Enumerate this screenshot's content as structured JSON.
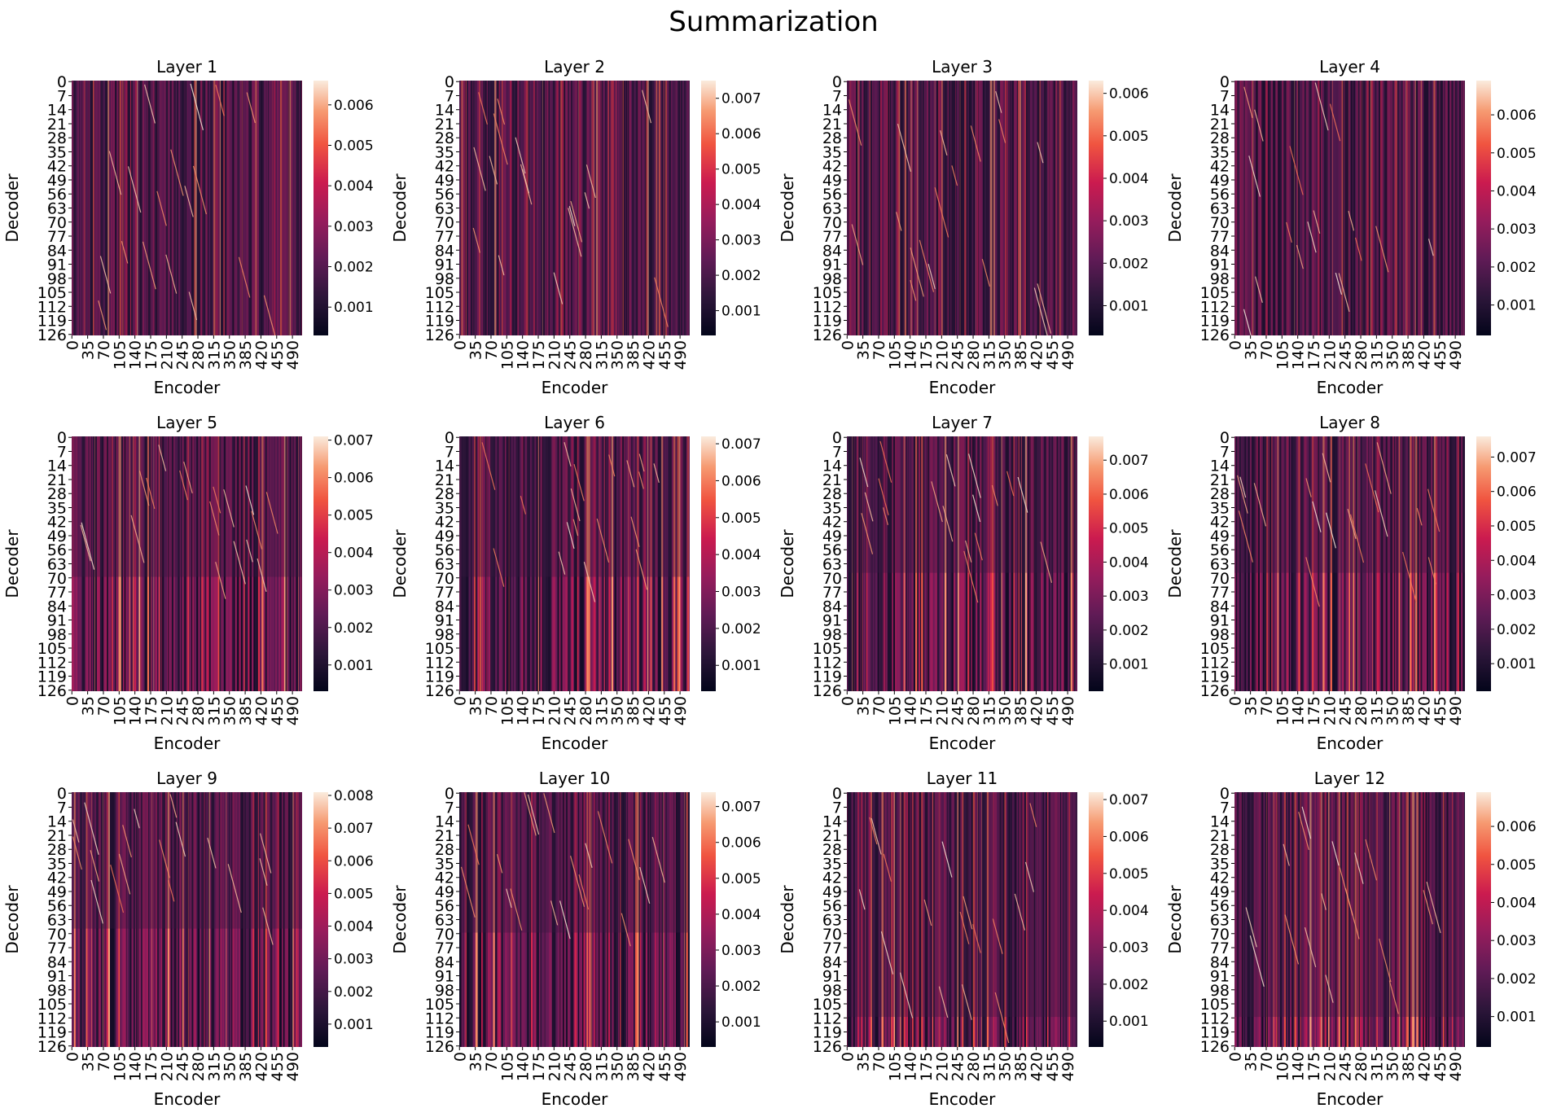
{
  "chart_data": {
    "type": "heatmap",
    "title": "Summarization",
    "xlabel": "Encoder",
    "ylabel": "Decoder",
    "x_range": [
      0,
      511
    ],
    "y_range": [
      0,
      127
    ],
    "colormap": "rocket",
    "x_tick_labels": [
      "0",
      "35",
      "70",
      "105",
      "140",
      "175",
      "210",
      "245",
      "280",
      "315",
      "350",
      "385",
      "420",
      "455",
      "490"
    ],
    "y_tick_labels": [
      "0",
      "7",
      "14",
      "21",
      "28",
      "35",
      "42",
      "49",
      "56",
      "63",
      "70",
      "77",
      "84",
      "91",
      "98",
      "105",
      "112",
      "119",
      "126"
    ],
    "panels": [
      {
        "title": "Layer 1",
        "cmin": 0.0003,
        "cmax": 0.0066,
        "colorbar_ticks": [
          "0.001",
          "0.002",
          "0.003",
          "0.004",
          "0.005",
          "0.006"
        ]
      },
      {
        "title": "Layer 2",
        "cmin": 0.0003,
        "cmax": 0.0075,
        "colorbar_ticks": [
          "0.001",
          "0.002",
          "0.003",
          "0.004",
          "0.005",
          "0.006",
          "0.007"
        ]
      },
      {
        "title": "Layer 3",
        "cmin": 0.0003,
        "cmax": 0.0063,
        "colorbar_ticks": [
          "0.001",
          "0.002",
          "0.003",
          "0.004",
          "0.005",
          "0.006"
        ]
      },
      {
        "title": "Layer 4",
        "cmin": 0.0002,
        "cmax": 0.0069,
        "colorbar_ticks": [
          "0.001",
          "0.002",
          "0.003",
          "0.004",
          "0.005",
          "0.006"
        ]
      },
      {
        "title": "Layer 5",
        "cmin": 0.0003,
        "cmax": 0.0071,
        "colorbar_ticks": [
          "0.001",
          "0.002",
          "0.003",
          "0.004",
          "0.005",
          "0.006",
          "0.007"
        ]
      },
      {
        "title": "Layer 6",
        "cmin": 0.0003,
        "cmax": 0.0072,
        "colorbar_ticks": [
          "0.001",
          "0.002",
          "0.003",
          "0.004",
          "0.005",
          "0.006",
          "0.007"
        ]
      },
      {
        "title": "Layer 7",
        "cmin": 0.0002,
        "cmax": 0.0077,
        "colorbar_ticks": [
          "0.001",
          "0.002",
          "0.003",
          "0.004",
          "0.005",
          "0.006",
          "0.007"
        ]
      },
      {
        "title": "Layer 8",
        "cmin": 0.0002,
        "cmax": 0.0076,
        "colorbar_ticks": [
          "0.001",
          "0.002",
          "0.003",
          "0.004",
          "0.005",
          "0.006",
          "0.007"
        ]
      },
      {
        "title": "Layer 9",
        "cmin": 0.0003,
        "cmax": 0.0081,
        "colorbar_ticks": [
          "0.001",
          "0.002",
          "0.003",
          "0.004",
          "0.005",
          "0.006",
          "0.007",
          "0.008"
        ]
      },
      {
        "title": "Layer 10",
        "cmin": 0.0003,
        "cmax": 0.0074,
        "colorbar_ticks": [
          "0.001",
          "0.002",
          "0.003",
          "0.004",
          "0.005",
          "0.006",
          "0.007"
        ]
      },
      {
        "title": "Layer 11",
        "cmin": 0.0003,
        "cmax": 0.0072,
        "colorbar_ticks": [
          "0.001",
          "0.002",
          "0.003",
          "0.004",
          "0.005",
          "0.006",
          "0.007"
        ]
      },
      {
        "title": "Layer 12",
        "cmin": 0.0002,
        "cmax": 0.0069,
        "colorbar_ticks": [
          "0.001",
          "0.002",
          "0.003",
          "0.004",
          "0.005",
          "0.006"
        ]
      }
    ]
  }
}
